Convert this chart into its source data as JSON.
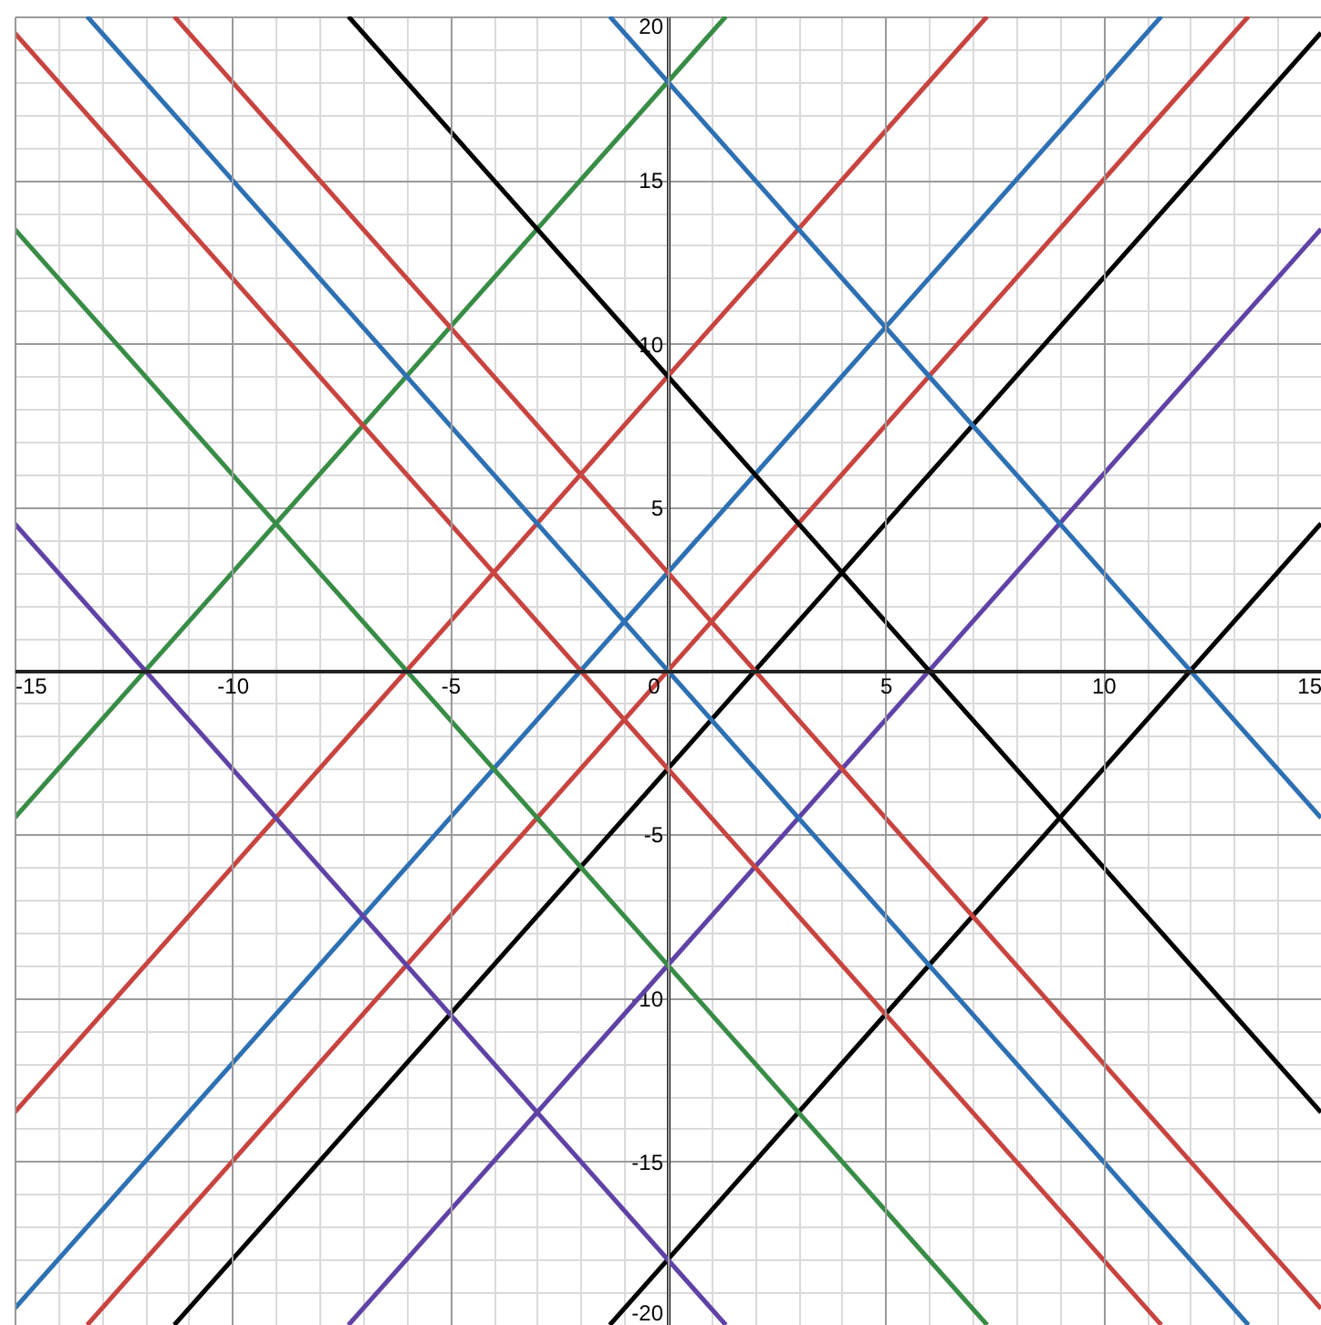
{
  "chart_data": {
    "type": "line",
    "xlim": [
      -15,
      15
    ],
    "ylim": [
      -20,
      20
    ],
    "xticks": [
      -15,
      -10,
      -5,
      0,
      5,
      10,
      15
    ],
    "yticks": [
      -20,
      -15,
      -10,
      -5,
      5,
      10,
      15,
      20
    ],
    "grid": true,
    "series": [
      {
        "color": "#388c46",
        "x": [
          -15,
          1.333
        ],
        "values": [
          -4.5,
          20
        ]
      },
      {
        "color": "#c74440",
        "x": [
          -15,
          7.333
        ],
        "values": [
          -13.5,
          20
        ]
      },
      {
        "color": "#2d70b3",
        "x": [
          -15,
          11.333
        ],
        "values": [
          -19.5,
          20
        ]
      },
      {
        "color": "#c74440",
        "x": [
          -13.333,
          13.333
        ],
        "values": [
          -20,
          20
        ]
      },
      {
        "color": "#000000",
        "x": [
          -11.333,
          15
        ],
        "values": [
          -20,
          19.5
        ]
      },
      {
        "color": "#6042a6",
        "x": [
          -7.333,
          15
        ],
        "values": [
          -20,
          13.5
        ]
      },
      {
        "color": "#000000",
        "x": [
          -1.333,
          15
        ],
        "values": [
          -20,
          4.5
        ]
      },
      {
        "color": "#6042a6",
        "x": [
          -15,
          1.333
        ],
        "values": [
          4.5,
          -20
        ]
      },
      {
        "color": "#388c46",
        "x": [
          -15,
          7.333
        ],
        "values": [
          13.5,
          -20
        ]
      },
      {
        "color": "#c74440",
        "x": [
          -15,
          11.333
        ],
        "values": [
          19.5,
          -20
        ]
      },
      {
        "color": "#2d70b3",
        "x": [
          -13.333,
          13.333
        ],
        "values": [
          20,
          -20
        ]
      },
      {
        "color": "#c74440",
        "x": [
          -11.333,
          15
        ],
        "values": [
          20,
          -19.5
        ]
      },
      {
        "color": "#000000",
        "x": [
          -7.333,
          15
        ],
        "values": [
          20,
          -13.5
        ]
      },
      {
        "color": "#2d70b3",
        "x": [
          -1.333,
          15
        ],
        "values": [
          20,
          -4.5
        ]
      }
    ]
  }
}
